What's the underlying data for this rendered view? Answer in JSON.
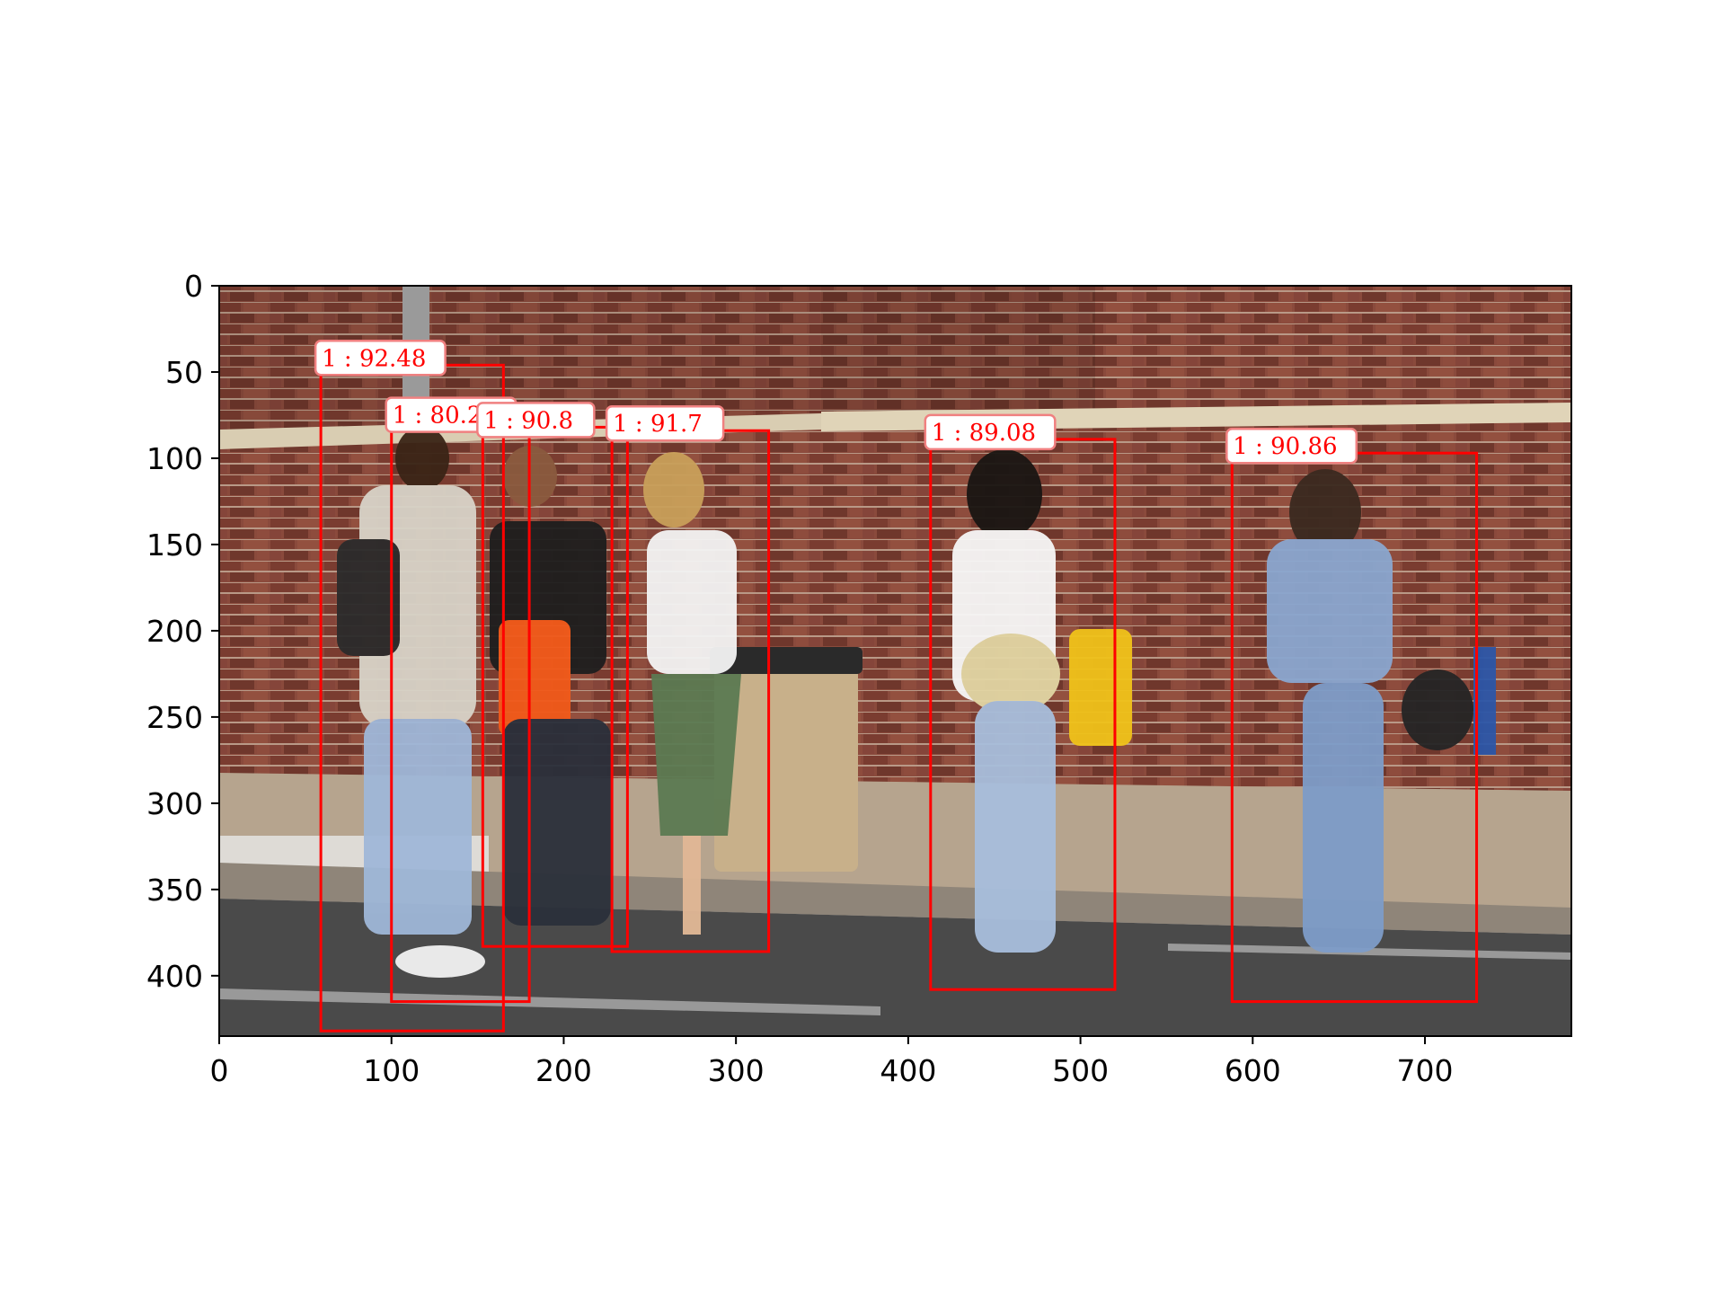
{
  "image": {
    "description_colors": {
      "box_stroke": "#ff0000",
      "label_text": "#ff0000",
      "label_background": "#ffffff",
      "label_border": "#f08080"
    }
  },
  "axes": {
    "x_ticks": [
      "0",
      "100",
      "200",
      "300",
      "400",
      "500",
      "600",
      "700"
    ],
    "y_ticks": [
      "0",
      "50",
      "100",
      "150",
      "200",
      "250",
      "300",
      "350",
      "400"
    ],
    "xlim": [
      0,
      785
    ],
    "ylim": [
      435,
      0
    ]
  },
  "detections": [
    {
      "label": "1 : 92.48",
      "x0": 59,
      "y0": 46,
      "x1": 165,
      "y1": 432
    },
    {
      "label": "1 : 80.28",
      "x0": 100,
      "y0": 79,
      "x1": 180,
      "y1": 415
    },
    {
      "label": "1 : 90.8",
      "x0": 153,
      "y0": 82,
      "x1": 237,
      "y1": 383
    },
    {
      "label": "1 : 91.7",
      "x0": 228,
      "y0": 84,
      "x1": 319,
      "y1": 386
    },
    {
      "label": "1 : 89.08",
      "x0": 413,
      "y0": 89,
      "x1": 520,
      "y1": 408
    },
    {
      "label": "1 : 90.86",
      "x0": 588,
      "y0": 97,
      "x1": 730,
      "y1": 415
    }
  ]
}
